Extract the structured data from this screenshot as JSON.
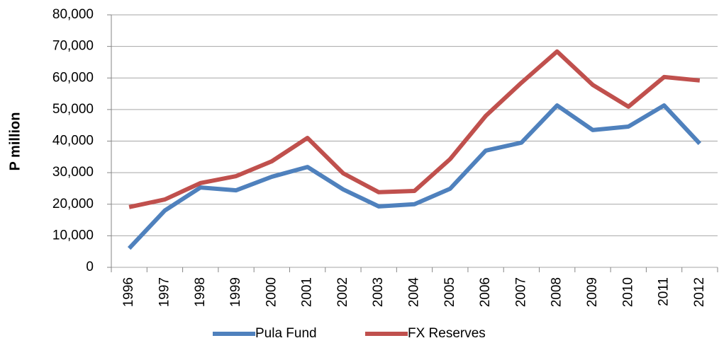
{
  "chart_data": {
    "type": "line",
    "y_label": "P million",
    "categories": [
      "1996",
      "1997",
      "1998",
      "1999",
      "2000",
      "2001",
      "2002",
      "2003",
      "2004",
      "2005",
      "2006",
      "2007",
      "2008",
      "2009",
      "2010",
      "2011",
      "2012"
    ],
    "series": [
      {
        "name": "Pula Fund",
        "color": "#4f81bd",
        "values": [
          6000,
          18000,
          25300,
          24400,
          28700,
          31800,
          24700,
          19300,
          20000,
          24900,
          37000,
          39500,
          51300,
          43500,
          44600,
          51300,
          39200
        ]
      },
      {
        "name": "FX Reserves",
        "color": "#c0504d",
        "values": [
          19100,
          21500,
          26700,
          28900,
          33600,
          41000,
          29800,
          23800,
          24200,
          34300,
          48000,
          58500,
          68400,
          57800,
          50900,
          60300,
          59200
        ]
      }
    ],
    "ylim": [
      0,
      80000
    ],
    "yticks": [
      0,
      {
        "value": 10000,
        "label": "10,000"
      },
      {
        "value": 20000,
        "label": "20,000"
      },
      {
        "value": 30000,
        "label": "30,000"
      },
      {
        "value": 40000,
        "label": "40,000"
      },
      {
        "value": 50000,
        "label": "50,000"
      },
      {
        "value": 60000,
        "label": "60,000"
      },
      {
        "value": 70000,
        "label": "70,000"
      },
      {
        "value": 80000,
        "label": "80,000"
      }
    ],
    "grid": true,
    "legend": "bottom"
  }
}
